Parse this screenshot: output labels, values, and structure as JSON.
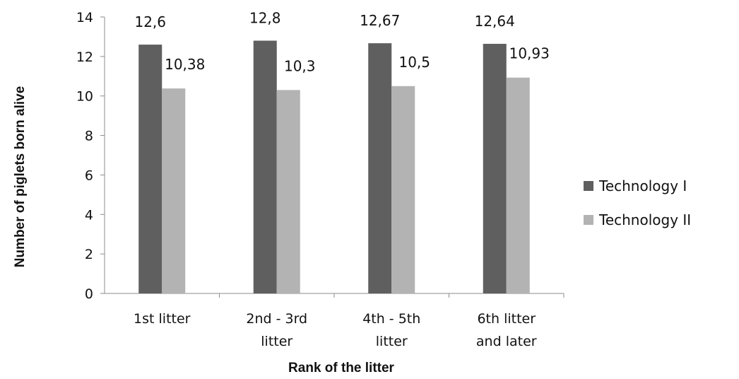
{
  "chart_data": {
    "type": "bar",
    "title": "",
    "xlabel": "Rank of the litter",
    "ylabel": "Number of piglets born alive",
    "ylim": [
      0,
      14
    ],
    "ytick_step": 2,
    "yticks": [
      "0",
      "2",
      "4",
      "6",
      "8",
      "10",
      "12",
      "14"
    ],
    "grid": false,
    "legend_position": "right",
    "categories": [
      [
        "1st litter"
      ],
      [
        "2nd - 3rd",
        "litter"
      ],
      [
        "4th - 5th",
        "litter"
      ],
      [
        "6th litter",
        "and later"
      ]
    ],
    "series": [
      {
        "name": "Technology I",
        "color": "#5f5f5f",
        "values": [
          12.6,
          12.8,
          12.67,
          12.64
        ],
        "labels": [
          "12,6",
          "12,8",
          "12,67",
          "12,64"
        ]
      },
      {
        "name": "Technology II",
        "color": "#b3b3b3",
        "values": [
          10.38,
          10.3,
          10.5,
          10.93
        ],
        "labels": [
          "10,38",
          "10,3",
          "10,5",
          "10,93"
        ]
      }
    ]
  }
}
